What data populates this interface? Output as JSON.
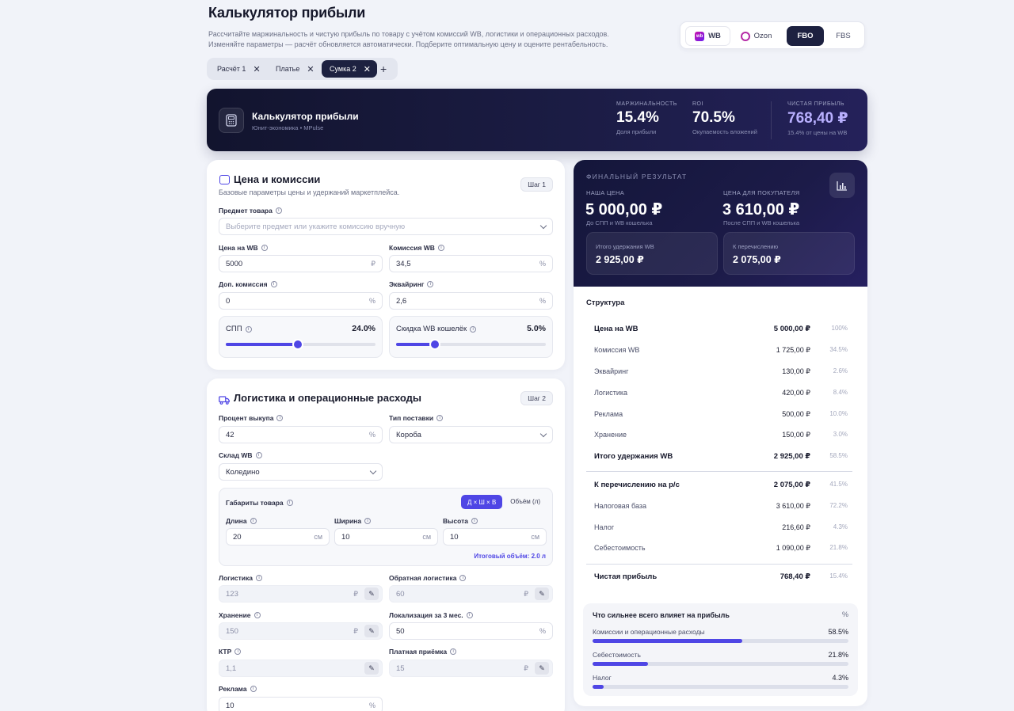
{
  "header": {
    "title": "Калькулятор прибыли",
    "description_line1": "Рассчитайте маржинальность и чистую прибыль по товару с учётом комиссий WB, логистики и операционных расходов.",
    "description_line2": "Изменяйте параметры — расчёт обновляется автоматически. Подберите оптимальную цену и оцените рентабельность."
  },
  "marketplace": {
    "wb": "WB",
    "ozon": "Ozon",
    "fbo": "FBO",
    "fbs": "FBS",
    "wb_logo_text": "wb"
  },
  "tabs": [
    {
      "label": "Расчёт 1"
    },
    {
      "label": "Платье"
    },
    {
      "label": "Сумка 2"
    }
  ],
  "tab_add": "+",
  "hero": {
    "title": "Калькулятор прибыли",
    "subtitle": "Юнит-экономика • MPulse",
    "kpis": [
      {
        "label": "МАРЖИНАЛЬНОСТЬ",
        "value": "15.4%",
        "sub": "Доля прибыли"
      },
      {
        "label": "ROI",
        "value": "70.5%",
        "sub": "Окупаемость вложений"
      },
      {
        "label": "ЧИСТАЯ ПРИБЫЛЬ",
        "value": "768,40 ₽",
        "sub": "15.4% от цены на WB"
      }
    ]
  },
  "price_section": {
    "title": "Цена и комиссии",
    "description": "Базовые параметры цены и удержаний маркетплейса.",
    "step": "Шаг 1",
    "subject_label": "Предмет товара",
    "subject_placeholder": "Выберите предмет или укажите комиссию вручную",
    "price_label": "Цена на WB",
    "price_value": "5000",
    "price_unit": "₽",
    "commission_label": "Комиссия WB",
    "commission_value": "34,5",
    "commission_unit": "%",
    "extra_label": "Доп. комиссия",
    "extra_value": "0",
    "extra_unit": "%",
    "acquiring_label": "Эквайринг",
    "acquiring_value": "2,6",
    "acquiring_unit": "%",
    "spp_label": "СПП",
    "spp_value": "24.0%",
    "spp_fraction": 0.48,
    "wallet_label": "Скидка WB кошелёк",
    "wallet_value": "5.0%",
    "wallet_fraction": 0.26
  },
  "logistics_section": {
    "title": "Логистика и операционные расходы",
    "step": "Шаг 2",
    "buyout_label": "Процент выкупа",
    "buyout_value": "42",
    "buyout_unit": "%",
    "supply_label": "Тип поставки",
    "supply_value": "Короба",
    "warehouse_label": "Склад WB",
    "warehouse_value": "Коледино",
    "dims_label": "Габариты товара",
    "dims_toggle_a": "Д × Ш × В",
    "dims_toggle_b": "Объём (л)",
    "length_label": "Длина",
    "length_value": "20",
    "width_label": "Ширина",
    "width_value": "10",
    "height_label": "Высота",
    "height_value": "10",
    "dim_unit": "см",
    "volume_total": "Итоговый объём: 2.0 л",
    "logistics_label": "Логистика",
    "logistics_value": "123",
    "logistics_unit": "₽",
    "return_label": "Обратная логистика",
    "return_value": "60",
    "return_unit": "₽",
    "storage_label": "Хранение",
    "storage_value": "150",
    "storage_unit": "₽",
    "localization_label": "Локализация за 3 мес.",
    "localization_value": "50",
    "localization_unit": "%",
    "ktr_label": "КТР",
    "ktr_value": "1,1",
    "paid_label": "Платная приёмка",
    "paid_value": "15",
    "paid_unit": "₽",
    "ads_label": "Реклама",
    "ads_value": "10",
    "ads_unit": "%"
  },
  "result": {
    "kicker": "ФИНАЛЬНЫЙ РЕЗУЛЬТАТ",
    "our_price_label": "НАША ЦЕНА",
    "our_price_value": "5 000,00 ₽",
    "our_price_sub": "До СПП и WB кошелька",
    "buyer_price_label": "ЦЕНА ДЛЯ ПОКУПАТЕЛЯ",
    "buyer_price_value": "3 610,00 ₽",
    "buyer_price_sub": "После СПП и WB кошелька",
    "withheld_label": "Итого удержания WB",
    "withheld_value": "2 925,00 ₽",
    "transfer_label": "К перечислению",
    "transfer_value": "2 075,00 ₽",
    "structure_title": "Структура",
    "rows": [
      {
        "name": "Цена на WB",
        "value": "5 000,00 ₽",
        "pct": "100%"
      },
      {
        "name": "Комиссия WB",
        "value": "1 725,00 ₽",
        "pct": "34.5%"
      },
      {
        "name": "Эквайринг",
        "value": "130,00 ₽",
        "pct": "2.6%"
      },
      {
        "name": "Логистика",
        "value": "420,00 ₽",
        "pct": "8.4%"
      },
      {
        "name": "Реклама",
        "value": "500,00 ₽",
        "pct": "10.0%"
      },
      {
        "name": "Хранение",
        "value": "150,00 ₽",
        "pct": "3.0%"
      },
      {
        "name": "Итого удержания WB",
        "value": "2 925,00 ₽",
        "pct": "58.5%"
      },
      {
        "name": "К перечислению на р/с",
        "value": "2 075,00 ₽",
        "pct": "41.5%"
      },
      {
        "name": "Налоговая база",
        "value": "3 610,00 ₽",
        "pct": "72.2%"
      },
      {
        "name": "Налог",
        "value": "216,60 ₽",
        "pct": "4.3%"
      },
      {
        "name": "Себестоимость",
        "value": "1 090,00 ₽",
        "pct": "21.8%"
      },
      {
        "name": "Чистая прибыль",
        "value": "768,40 ₽",
        "pct": "15.4%"
      }
    ],
    "impact_title": "Что сильнее всего влияет на прибыль",
    "impact_unit": "%",
    "impact": [
      {
        "name": "Комиссии и операционные расходы",
        "value": "58.5%",
        "fraction": 0.585
      },
      {
        "name": "Себестоимость",
        "value": "21.8%",
        "fraction": 0.218
      },
      {
        "name": "Налог",
        "value": "4.3%",
        "fraction": 0.043
      }
    ]
  }
}
